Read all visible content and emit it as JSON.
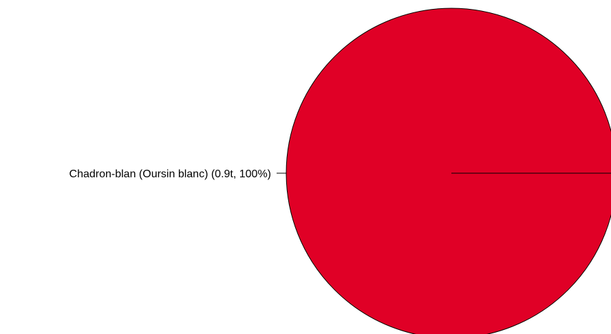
{
  "chart_data": {
    "type": "pie",
    "title": "",
    "slices": [
      {
        "name": "Chadron-blan (Oursin blanc)",
        "value": 0.9,
        "unit": "t",
        "percent": 100,
        "label": "Chadron-blan (Oursin blanc) (0.9t, 100%)",
        "color": "#e00026"
      }
    ],
    "legend": "none",
    "slice_border_color": "#000000"
  }
}
